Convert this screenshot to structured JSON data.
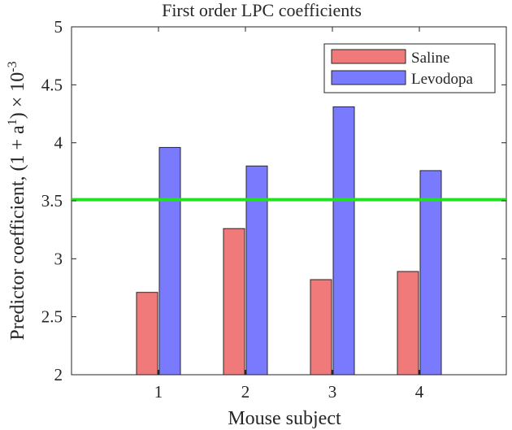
{
  "chart_data": {
    "type": "bar",
    "title": "First order LPC coefficients",
    "xlabel": "Mouse subject",
    "ylabel": "Predictor coefficient, (1 + a",
    "ylabel_sup1": "1",
    "ylabel_mid": ") × 10",
    "ylabel_sup2": "-3",
    "categories": [
      "1",
      "2",
      "3",
      "4"
    ],
    "ylim": [
      2,
      5
    ],
    "yticks": [
      "2",
      "2.5",
      "3",
      "3.5",
      "4",
      "4.5",
      "5"
    ],
    "grid": false,
    "legend_position": "top-right",
    "series": [
      {
        "name": "Saline",
        "color": "#f07a7a",
        "values": [
          2.71,
          3.26,
          2.82,
          2.89
        ]
      },
      {
        "name": "Levodopa",
        "color": "#7a7aff",
        "values": [
          3.96,
          3.8,
          4.31,
          3.76
        ]
      }
    ],
    "reference_line": {
      "value": 3.51,
      "color": "#22e022"
    }
  }
}
